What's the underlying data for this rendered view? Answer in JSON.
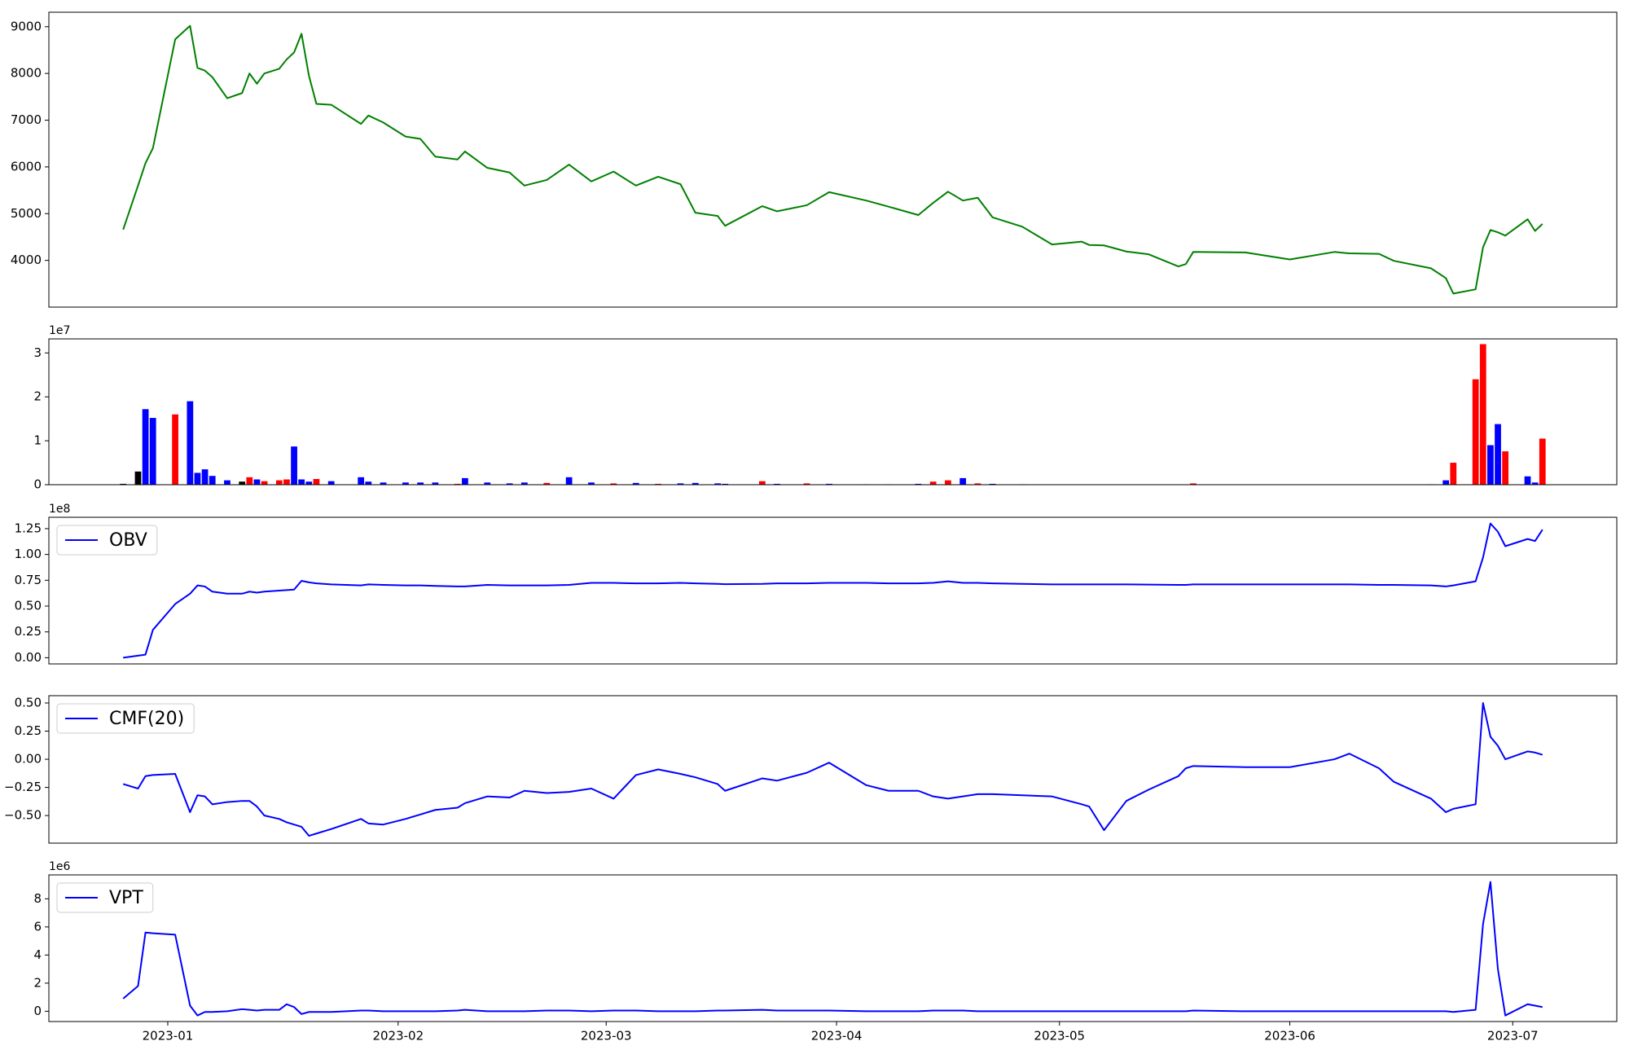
{
  "chart_data": {
    "x": [
      "2022-12-26",
      "2022-12-28",
      "2022-12-29",
      "2022-12-30",
      "2023-01-02",
      "2023-01-04",
      "2023-01-05",
      "2023-01-06",
      "2023-01-07",
      "2023-01-09",
      "2023-01-11",
      "2023-01-12",
      "2023-01-13",
      "2023-01-14",
      "2023-01-16",
      "2023-01-17",
      "2023-01-18",
      "2023-01-19",
      "2023-01-20",
      "2023-01-21",
      "2023-01-23",
      "2023-01-27",
      "2023-01-28",
      "2023-01-30",
      "2023-02-02",
      "2023-02-04",
      "2023-02-06",
      "2023-02-09",
      "2023-02-10",
      "2023-02-13",
      "2023-02-16",
      "2023-02-18",
      "2023-02-21",
      "2023-02-24",
      "2023-02-27",
      "2023-03-02",
      "2023-03-05",
      "2023-03-08",
      "2023-03-11",
      "2023-03-13",
      "2023-03-16",
      "2023-03-17",
      "2023-03-22",
      "2023-03-24",
      "2023-03-28",
      "2023-03-31",
      "2023-04-05",
      "2023-04-08",
      "2023-04-12",
      "2023-04-14",
      "2023-04-16",
      "2023-04-18",
      "2023-04-20",
      "2023-04-22",
      "2023-04-26",
      "2023-04-30",
      "2023-05-04",
      "2023-05-05",
      "2023-05-07",
      "2023-05-10",
      "2023-05-13",
      "2023-05-17",
      "2023-05-18",
      "2023-05-19",
      "2023-05-26",
      "2023-06-01",
      "2023-06-07",
      "2023-06-09",
      "2023-06-13",
      "2023-06-15",
      "2023-06-20",
      "2023-06-22",
      "2023-06-23",
      "2023-06-26",
      "2023-06-27",
      "2023-06-28",
      "2023-06-29",
      "2023-06-30",
      "2023-07-03",
      "2023-07-04",
      "2023-07-05"
    ],
    "xlim": [
      "2022-12-16",
      "2023-07-15"
    ],
    "xticks": [
      "2023-01",
      "2023-02",
      "2023-03",
      "2023-04",
      "2023-05",
      "2023-06",
      "2023-07"
    ],
    "panels": [
      {
        "type": "line",
        "ylim": [
          3000,
          9310
        ],
        "yticks": [
          4000,
          5000,
          6000,
          7000,
          8000,
          9000
        ],
        "series": [
          {
            "color": "#008000",
            "values": [
              4660,
              5600,
              6080,
              6400,
              8730,
              9020,
              8120,
              8060,
              7920,
              7470,
              7580,
              8000,
              7780,
              8000,
              8100,
              8300,
              8450,
              8850,
              7950,
              7350,
              7330,
              6920,
              7100,
              6950,
              6650,
              6600,
              6220,
              6160,
              6330,
              5980,
              5880,
              5600,
              5720,
              6050,
              5690,
              5900,
              5600,
              5790,
              5630,
              5020,
              4950,
              4740,
              5160,
              5050,
              5180,
              5460,
              5280,
              5150,
              4970,
              5230,
              5470,
              5280,
              5340,
              4920,
              4720,
              4340,
              4400,
              4330,
              4320,
              4190,
              4130,
              3870,
              3920,
              4180,
              4170,
              4020,
              4180,
              4150,
              4140,
              3990,
              3830,
              3620,
              3290,
              3380,
              4280,
              4650,
              4600,
              4530,
              4880,
              4630,
              4780
            ]
          }
        ]
      },
      {
        "type": "bar",
        "offset_label": "1e7",
        "ylim": [
          0,
          3.32
        ],
        "yticks": [
          0,
          1,
          2,
          3
        ],
        "values": [
          0.02,
          0.3,
          1.72,
          1.52,
          1.6,
          1.9,
          0.27,
          0.35,
          0.2,
          0.1,
          0.07,
          0.17,
          0.12,
          0.08,
          0.1,
          0.12,
          0.87,
          0.12,
          0.07,
          0.13,
          0.08,
          0.17,
          0.07,
          0.05,
          0.05,
          0.05,
          0.05,
          0.02,
          0.15,
          0.05,
          0.03,
          0.05,
          0.04,
          0.17,
          0.05,
          0.03,
          0.04,
          0.02,
          0.03,
          0.04,
          0.03,
          0.02,
          0.08,
          0.02,
          0.03,
          0.02,
          0.01,
          0.01,
          0.02,
          0.07,
          0.1,
          0.15,
          0.03,
          0.02,
          0.01,
          0.005,
          0.005,
          0.005,
          0.005,
          0.005,
          0.005,
          0.005,
          0.005,
          0.03,
          0.005,
          0.005,
          0.005,
          0.005,
          0.005,
          0.005,
          0.01,
          0.1,
          0.5,
          2.4,
          3.2,
          0.9,
          1.38,
          0.76,
          0.19,
          0.05,
          1.05
        ],
        "colors": [
          "#000000",
          "#000000",
          "#0000ff",
          "#0000ff",
          "#ff0000",
          "#0000ff",
          "#0000ff",
          "#0000ff",
          "#0000ff",
          "#0000ff",
          "#000000",
          "#ff0000",
          "#0000ff",
          "#ff0000",
          "#ff0000",
          "#ff0000",
          "#0000ff",
          "#0000ff",
          "#0000ff",
          "#ff0000",
          "#0000ff",
          "#0000ff",
          "#0000ff",
          "#0000ff",
          "#0000ff",
          "#0000ff",
          "#0000ff",
          "#ff0000",
          "#0000ff",
          "#0000ff",
          "#0000ff",
          "#0000ff",
          "#ff0000",
          "#0000ff",
          "#0000ff",
          "#ff0000",
          "#0000ff",
          "#ff0000",
          "#0000ff",
          "#0000ff",
          "#0000ff",
          "#0000ff",
          "#ff0000",
          "#0000ff",
          "#ff0000",
          "#0000ff",
          "#0000ff",
          "#0000ff",
          "#0000ff",
          "#ff0000",
          "#ff0000",
          "#0000ff",
          "#ff0000",
          "#0000ff",
          "#0000ff",
          "#0000ff",
          "#0000ff",
          "#0000ff",
          "#0000ff",
          "#0000ff",
          "#0000ff",
          "#0000ff",
          "#0000ff",
          "#ff0000",
          "#0000ff",
          "#0000ff",
          "#0000ff",
          "#0000ff",
          "#0000ff",
          "#0000ff",
          "#0000ff",
          "#0000ff",
          "#ff0000",
          "#ff0000",
          "#ff0000",
          "#0000ff",
          "#0000ff",
          "#ff0000",
          "#0000ff",
          "#0000ff",
          "#ff0000"
        ]
      },
      {
        "type": "line",
        "offset_label": "1e8",
        "legend": "upper left",
        "ylim": [
          -0.06,
          1.36
        ],
        "yticks": [
          {
            "value": 0,
            "label": "0.00"
          },
          {
            "value": 0.25,
            "label": "0.25"
          },
          {
            "value": 0.5,
            "label": "0.50"
          },
          {
            "value": 0.75,
            "label": "0.75"
          },
          {
            "value": 1,
            "label": "1.00"
          },
          {
            "value": 1.25,
            "label": "1.25"
          }
        ],
        "series": [
          {
            "name": "OBV",
            "color": "#0000ff",
            "values": [
              0,
              0.02,
              0.03,
              0.27,
              0.52,
              0.62,
              0.7,
              0.69,
              0.64,
              0.62,
              0.62,
              0.64,
              0.63,
              0.64,
              0.65,
              0.655,
              0.66,
              0.745,
              0.73,
              0.72,
              0.71,
              0.7,
              0.71,
              0.705,
              0.7,
              0.7,
              0.695,
              0.69,
              0.69,
              0.705,
              0.7,
              0.7,
              0.7,
              0.705,
              0.725,
              0.725,
              0.72,
              0.72,
              0.725,
              0.72,
              0.715,
              0.712,
              0.715,
              0.72,
              0.72,
              0.725,
              0.725,
              0.72,
              0.72,
              0.725,
              0.74,
              0.725,
              0.725,
              0.72,
              0.715,
              0.71,
              0.71,
              0.71,
              0.71,
              0.71,
              0.708,
              0.705,
              0.705,
              0.71,
              0.71,
              0.71,
              0.71,
              0.71,
              0.705,
              0.705,
              0.7,
              0.69,
              0.7,
              0.74,
              0.97,
              1.3,
              1.22,
              1.08,
              1.15,
              1.13,
              1.24
            ]
          }
        ]
      },
      {
        "type": "line",
        "legend": "upper left",
        "ylim": [
          -0.745,
          0.565
        ],
        "yticks": [
          {
            "value": -0.5,
            "label": "−0.50"
          },
          {
            "value": -0.25,
            "label": "−0.25"
          },
          {
            "value": 0,
            "label": "0.00"
          },
          {
            "value": 0.25,
            "label": "0.25"
          },
          {
            "value": 0.5,
            "label": "0.50"
          }
        ],
        "series": [
          {
            "name": "CMF(20)",
            "color": "#0000ff",
            "values": [
              -0.22,
              -0.26,
              -0.15,
              -0.14,
              -0.13,
              -0.47,
              -0.32,
              -0.33,
              -0.4,
              -0.38,
              -0.37,
              -0.37,
              -0.42,
              -0.5,
              -0.53,
              -0.56,
              -0.58,
              -0.6,
              -0.68,
              -0.66,
              -0.62,
              -0.53,
              -0.57,
              -0.58,
              -0.53,
              -0.49,
              -0.45,
              -0.43,
              -0.39,
              -0.33,
              -0.34,
              -0.28,
              -0.3,
              -0.29,
              -0.26,
              -0.35,
              -0.14,
              -0.09,
              -0.13,
              -0.16,
              -0.22,
              -0.28,
              -0.17,
              -0.19,
              -0.12,
              -0.03,
              -0.23,
              -0.28,
              -0.28,
              -0.33,
              -0.35,
              -0.33,
              -0.31,
              -0.31,
              -0.32,
              -0.33,
              -0.4,
              -0.42,
              -0.63,
              -0.37,
              -0.27,
              -0.15,
              -0.08,
              -0.06,
              -0.07,
              -0.07,
              0,
              0.05,
              -0.08,
              -0.2,
              -0.35,
              -0.47,
              -0.44,
              -0.4,
              0.5,
              0.2,
              0.12,
              0,
              0.07,
              0.06,
              0.04
            ]
          }
        ]
      },
      {
        "type": "line",
        "offset_label": "1e6",
        "legend": "upper left",
        "ylim": [
          -0.73,
          9.7
        ],
        "yticks": [
          0,
          2,
          4,
          6,
          8
        ],
        "series": [
          {
            "name": "VPT",
            "color": "#0000ff",
            "values": [
              0.9,
              1.8,
              5.6,
              5.55,
              5.45,
              0.4,
              -0.3,
              -0.05,
              -0.05,
              0,
              0.15,
              0.1,
              0.05,
              0.1,
              0.1,
              0.5,
              0.3,
              -0.2,
              -0.05,
              -0.05,
              -0.05,
              0.05,
              0.05,
              0,
              0,
              0,
              0,
              0.05,
              0.1,
              0,
              0,
              0,
              0.05,
              0.05,
              0,
              0.05,
              0.05,
              0,
              0,
              0,
              0.05,
              0.05,
              0.1,
              0.05,
              0.05,
              0.05,
              0,
              0,
              0,
              0.05,
              0.05,
              0.05,
              0,
              0,
              0,
              0,
              0,
              0,
              0,
              0,
              0,
              0,
              0,
              0.05,
              0,
              0,
              0,
              0,
              0,
              0,
              0,
              0,
              -0.05,
              0.1,
              6.2,
              9.2,
              3,
              -0.3,
              0.5,
              0.4,
              0.3
            ]
          }
        ]
      }
    ]
  }
}
